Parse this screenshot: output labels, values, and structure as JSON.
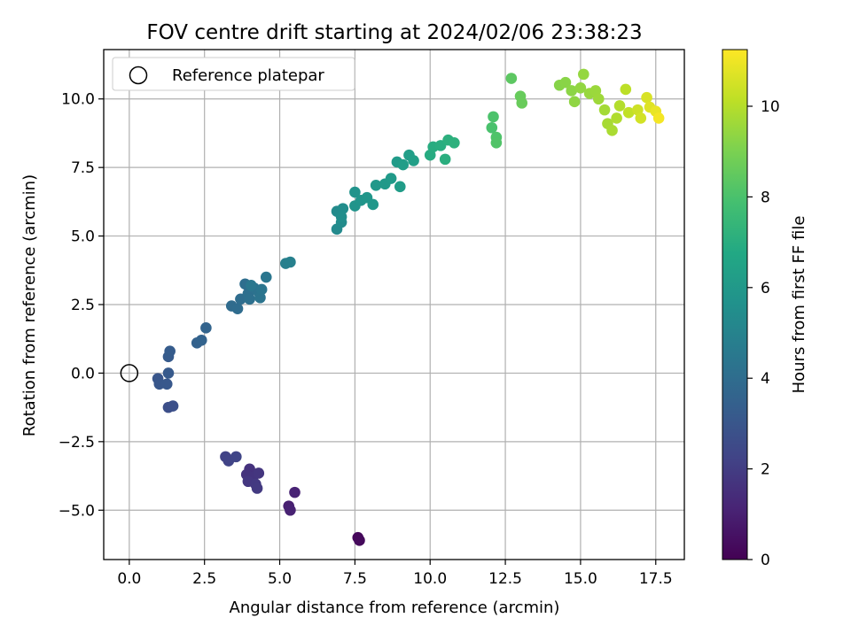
{
  "chart_data": {
    "type": "scatter",
    "title": "FOV centre drift starting at 2024/02/06 23:38:23",
    "xlabel": "Angular distance from reference (arcmin)",
    "ylabel": "Rotation from reference (arcmin)",
    "colorbar_label": "Hours from first FF file",
    "xlim": [
      -0.85,
      18.45
    ],
    "ylim": [
      -6.8,
      11.8
    ],
    "clim": [
      0,
      11.25
    ],
    "colormap": "viridis",
    "grid": true,
    "legend": {
      "position": "top-left",
      "entries": [
        "Reference platepar"
      ]
    },
    "x_ticks": [
      {
        "value": 0,
        "label": "0.0"
      },
      {
        "value": 2.5,
        "label": "2.5"
      },
      {
        "value": 5,
        "label": "5.0"
      },
      {
        "value": 7.5,
        "label": "7.5"
      },
      {
        "value": 10,
        "label": "10.0"
      },
      {
        "value": 12.5,
        "label": "12.5"
      },
      {
        "value": 15,
        "label": "15.0"
      },
      {
        "value": 17.5,
        "label": "17.5"
      }
    ],
    "y_ticks": [
      {
        "value": -5,
        "label": "−5.0"
      },
      {
        "value": -2.5,
        "label": "−2.5"
      },
      {
        "value": 0,
        "label": "0.0"
      },
      {
        "value": 2.5,
        "label": "2.5"
      },
      {
        "value": 5,
        "label": "5.0"
      },
      {
        "value": 7.5,
        "label": "7.5"
      },
      {
        "value": 10,
        "label": "10.0"
      }
    ],
    "colorbar_ticks": [
      {
        "value": 0,
        "label": "0"
      },
      {
        "value": 2,
        "label": "2"
      },
      {
        "value": 4,
        "label": "4"
      },
      {
        "value": 6,
        "label": "6"
      },
      {
        "value": 8,
        "label": "8"
      },
      {
        "value": 10,
        "label": "10"
      }
    ],
    "reference_point": {
      "x": 0.0,
      "y": 0.0,
      "label": "Reference platepar"
    },
    "points": [
      {
        "x": 7.6,
        "y": -6.0,
        "t": 0.2
      },
      {
        "x": 7.65,
        "y": -6.1,
        "t": 0.25
      },
      {
        "x": 5.3,
        "y": -4.85,
        "t": 1.0
      },
      {
        "x": 5.35,
        "y": -5.0,
        "t": 1.05
      },
      {
        "x": 5.5,
        "y": -4.35,
        "t": 1.1
      },
      {
        "x": 4.0,
        "y": -3.5,
        "t": 1.6
      },
      {
        "x": 3.9,
        "y": -3.7,
        "t": 1.65
      },
      {
        "x": 4.1,
        "y": -3.8,
        "t": 1.7
      },
      {
        "x": 4.3,
        "y": -3.65,
        "t": 1.75
      },
      {
        "x": 3.95,
        "y": -3.95,
        "t": 1.8
      },
      {
        "x": 4.2,
        "y": -4.05,
        "t": 1.85
      },
      {
        "x": 4.25,
        "y": -4.2,
        "t": 1.9
      },
      {
        "x": 3.2,
        "y": -3.05,
        "t": 2.2
      },
      {
        "x": 3.3,
        "y": -3.2,
        "t": 2.25
      },
      {
        "x": 3.55,
        "y": -3.05,
        "t": 2.3
      },
      {
        "x": 1.3,
        "y": -1.25,
        "t": 2.7
      },
      {
        "x": 1.45,
        "y": -1.2,
        "t": 2.75
      },
      {
        "x": 0.95,
        "y": -0.2,
        "t": 3.0
      },
      {
        "x": 1.0,
        "y": -0.4,
        "t": 3.05
      },
      {
        "x": 1.25,
        "y": -0.4,
        "t": 3.1
      },
      {
        "x": 1.3,
        "y": 0.0,
        "t": 3.15
      },
      {
        "x": 1.3,
        "y": 0.6,
        "t": 3.2
      },
      {
        "x": 1.35,
        "y": 0.8,
        "t": 3.25
      },
      {
        "x": 2.25,
        "y": 1.1,
        "t": 3.5
      },
      {
        "x": 2.4,
        "y": 1.2,
        "t": 3.55
      },
      {
        "x": 2.55,
        "y": 1.65,
        "t": 3.6
      },
      {
        "x": 3.4,
        "y": 2.45,
        "t": 3.9
      },
      {
        "x": 3.6,
        "y": 2.35,
        "t": 3.95
      },
      {
        "x": 3.7,
        "y": 2.7,
        "t": 4.0
      },
      {
        "x": 3.85,
        "y": 3.25,
        "t": 4.05
      },
      {
        "x": 3.95,
        "y": 2.9,
        "t": 4.1
      },
      {
        "x": 4.0,
        "y": 2.7,
        "t": 4.15
      },
      {
        "x": 4.15,
        "y": 3.1,
        "t": 4.2
      },
      {
        "x": 4.3,
        "y": 2.95,
        "t": 4.25
      },
      {
        "x": 4.35,
        "y": 2.75,
        "t": 4.3
      },
      {
        "x": 4.4,
        "y": 3.05,
        "t": 4.35
      },
      {
        "x": 4.55,
        "y": 3.5,
        "t": 4.4
      },
      {
        "x": 4.05,
        "y": 3.2,
        "t": 4.45
      },
      {
        "x": 5.2,
        "y": 4.0,
        "t": 4.8
      },
      {
        "x": 5.35,
        "y": 4.05,
        "t": 4.85
      },
      {
        "x": 6.9,
        "y": 5.25,
        "t": 5.3
      },
      {
        "x": 6.9,
        "y": 5.9,
        "t": 5.35
      },
      {
        "x": 7.05,
        "y": 5.5,
        "t": 5.4
      },
      {
        "x": 7.1,
        "y": 6.0,
        "t": 5.45
      },
      {
        "x": 7.05,
        "y": 5.7,
        "t": 5.5
      },
      {
        "x": 7.5,
        "y": 6.6,
        "t": 5.7
      },
      {
        "x": 7.5,
        "y": 6.1,
        "t": 5.75
      },
      {
        "x": 7.7,
        "y": 6.3,
        "t": 5.8
      },
      {
        "x": 7.9,
        "y": 6.4,
        "t": 5.85
      },
      {
        "x": 8.1,
        "y": 6.15,
        "t": 5.9
      },
      {
        "x": 8.2,
        "y": 6.85,
        "t": 5.95
      },
      {
        "x": 8.5,
        "y": 6.9,
        "t": 6.0
      },
      {
        "x": 8.7,
        "y": 7.1,
        "t": 6.05
      },
      {
        "x": 8.9,
        "y": 7.7,
        "t": 6.1
      },
      {
        "x": 9.0,
        "y": 6.8,
        "t": 6.15
      },
      {
        "x": 9.1,
        "y": 7.6,
        "t": 6.2
      },
      {
        "x": 9.3,
        "y": 7.95,
        "t": 6.25
      },
      {
        "x": 9.45,
        "y": 7.75,
        "t": 6.3
      },
      {
        "x": 10.0,
        "y": 7.95,
        "t": 6.9
      },
      {
        "x": 10.1,
        "y": 8.25,
        "t": 6.95
      },
      {
        "x": 10.35,
        "y": 8.3,
        "t": 7.0
      },
      {
        "x": 10.5,
        "y": 7.8,
        "t": 7.05
      },
      {
        "x": 10.6,
        "y": 8.5,
        "t": 7.1
      },
      {
        "x": 10.8,
        "y": 8.4,
        "t": 7.15
      },
      {
        "x": 12.05,
        "y": 8.95,
        "t": 8.0
      },
      {
        "x": 12.1,
        "y": 9.35,
        "t": 8.05
      },
      {
        "x": 12.2,
        "y": 8.6,
        "t": 8.1
      },
      {
        "x": 12.2,
        "y": 8.4,
        "t": 8.15
      },
      {
        "x": 12.7,
        "y": 10.75,
        "t": 8.4
      },
      {
        "x": 13.0,
        "y": 10.1,
        "t": 8.6
      },
      {
        "x": 13.05,
        "y": 9.85,
        "t": 8.65
      },
      {
        "x": 14.3,
        "y": 10.5,
        "t": 9.2
      },
      {
        "x": 14.5,
        "y": 10.6,
        "t": 9.25
      },
      {
        "x": 14.7,
        "y": 10.3,
        "t": 9.3
      },
      {
        "x": 14.8,
        "y": 9.9,
        "t": 9.35
      },
      {
        "x": 15.0,
        "y": 10.4,
        "t": 9.4
      },
      {
        "x": 15.1,
        "y": 10.9,
        "t": 9.45
      },
      {
        "x": 15.3,
        "y": 10.2,
        "t": 9.5
      },
      {
        "x": 15.5,
        "y": 10.3,
        "t": 9.55
      },
      {
        "x": 15.6,
        "y": 10.0,
        "t": 9.6
      },
      {
        "x": 15.8,
        "y": 9.6,
        "t": 9.7
      },
      {
        "x": 15.9,
        "y": 9.1,
        "t": 9.75
      },
      {
        "x": 16.05,
        "y": 8.85,
        "t": 9.8
      },
      {
        "x": 16.2,
        "y": 9.3,
        "t": 9.9
      },
      {
        "x": 16.3,
        "y": 9.75,
        "t": 9.95
      },
      {
        "x": 16.5,
        "y": 10.35,
        "t": 10.1
      },
      {
        "x": 16.6,
        "y": 9.5,
        "t": 10.2
      },
      {
        "x": 16.9,
        "y": 9.6,
        "t": 10.4
      },
      {
        "x": 17.0,
        "y": 9.3,
        "t": 10.5
      },
      {
        "x": 17.2,
        "y": 10.05,
        "t": 10.6
      },
      {
        "x": 17.3,
        "y": 9.7,
        "t": 10.7
      },
      {
        "x": 17.5,
        "y": 9.55,
        "t": 10.9
      },
      {
        "x": 17.6,
        "y": 9.3,
        "t": 11.1
      }
    ]
  }
}
